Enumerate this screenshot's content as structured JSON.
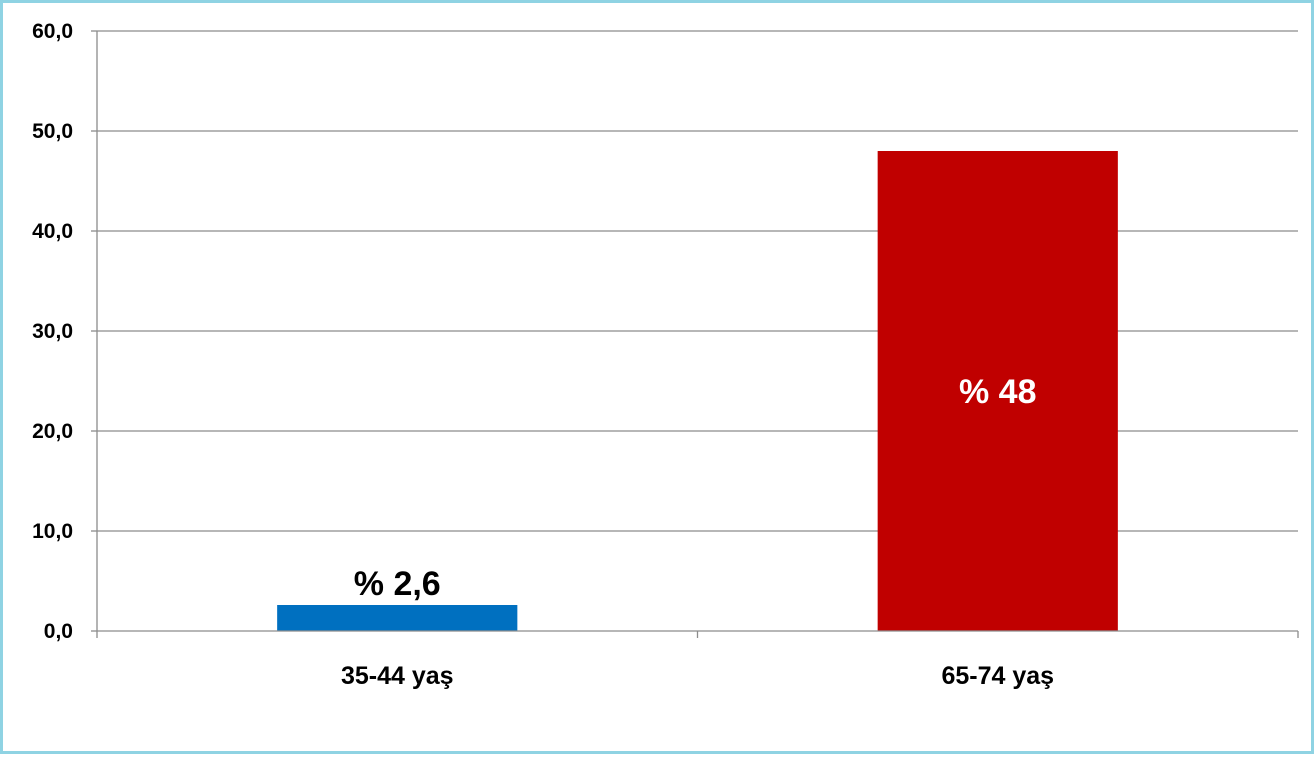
{
  "colors": {
    "frame_border": "#8fd3e3",
    "gridline": "#8c8c8c",
    "axis": "#8c8c8c"
  },
  "chart_data": {
    "type": "bar",
    "title": "",
    "xlabel": "",
    "ylabel": "",
    "ylim": [
      0,
      60
    ],
    "y_ticks": [
      "0,0",
      "10,0",
      "20,0",
      "30,0",
      "40,0",
      "50,0",
      "60,0"
    ],
    "grid": true,
    "legend": "none",
    "categories": [
      "35-44 yaş",
      "65-74 yaş"
    ],
    "values": [
      2.6,
      48
    ],
    "bar_colors": [
      "#0070c0",
      "#c00000"
    ],
    "data_labels": [
      "% 2,6",
      "% 48"
    ],
    "data_label_placement": [
      "outside-end",
      "center"
    ],
    "data_label_colors": [
      "#000000",
      "#ffffff"
    ]
  }
}
